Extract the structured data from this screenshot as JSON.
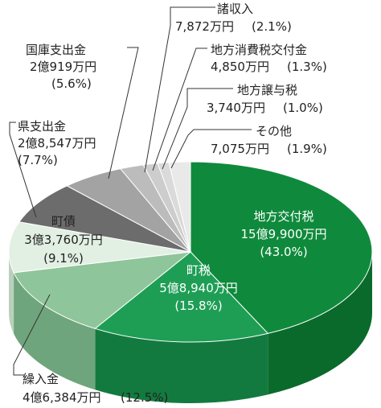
{
  "chart_data": {
    "type": "pie",
    "title": "",
    "slices": [
      {
        "name": "地方交付税",
        "amount": "15億9,900万円",
        "percent_label": "(43.0%)",
        "value": 43.0,
        "color": "#0f8a3c",
        "side": "#0a6a2c"
      },
      {
        "name": "町税",
        "amount": "5億8,940万円",
        "percent_label": "(15.8%)",
        "value": 15.8,
        "color": "#1e9e55",
        "side": "#137a3f"
      },
      {
        "name": "繰入金",
        "amount": "4億6,384万円",
        "percent_label": "(12.5%)",
        "value": 12.5,
        "color": "#8fc59a",
        "side": "#6fa57c"
      },
      {
        "name": "町債",
        "amount": "3億3,760万円",
        "percent_label": "(9.1%)",
        "value": 9.1,
        "color": "#e2efe3",
        "side": "#b9d1bc"
      },
      {
        "name": "県支出金",
        "amount": "2億8,547万円",
        "percent_label": "(7.7%)",
        "value": 7.7,
        "color": "#6c6c6c",
        "side": "#505050"
      },
      {
        "name": "国庫支出金",
        "amount": "2億919万円",
        "percent_label": "(5.6%)",
        "value": 5.6,
        "color": "#a3a3a3",
        "side": "#858585"
      },
      {
        "name": "諸収入",
        "amount": "7,872万円",
        "percent_label": "(2.1%)",
        "value": 2.1,
        "color": "#bcbcbc",
        "side": "#9c9c9c"
      },
      {
        "name": "地方消費税交付金",
        "amount": "4,850万円",
        "percent_label": "(1.3%)",
        "value": 1.3,
        "color": "#cdcdcd",
        "side": "#adadad"
      },
      {
        "name": "地方譲与税",
        "amount": "3,740万円",
        "percent_label": "(1.0%)",
        "value": 1.0,
        "color": "#dadada",
        "side": "#bbbbbb"
      },
      {
        "name": "その他",
        "amount": "7,075万円",
        "percent_label": "(1.9%)",
        "value": 1.9,
        "color": "#e9e9e9",
        "side": "#cacaca"
      }
    ]
  }
}
